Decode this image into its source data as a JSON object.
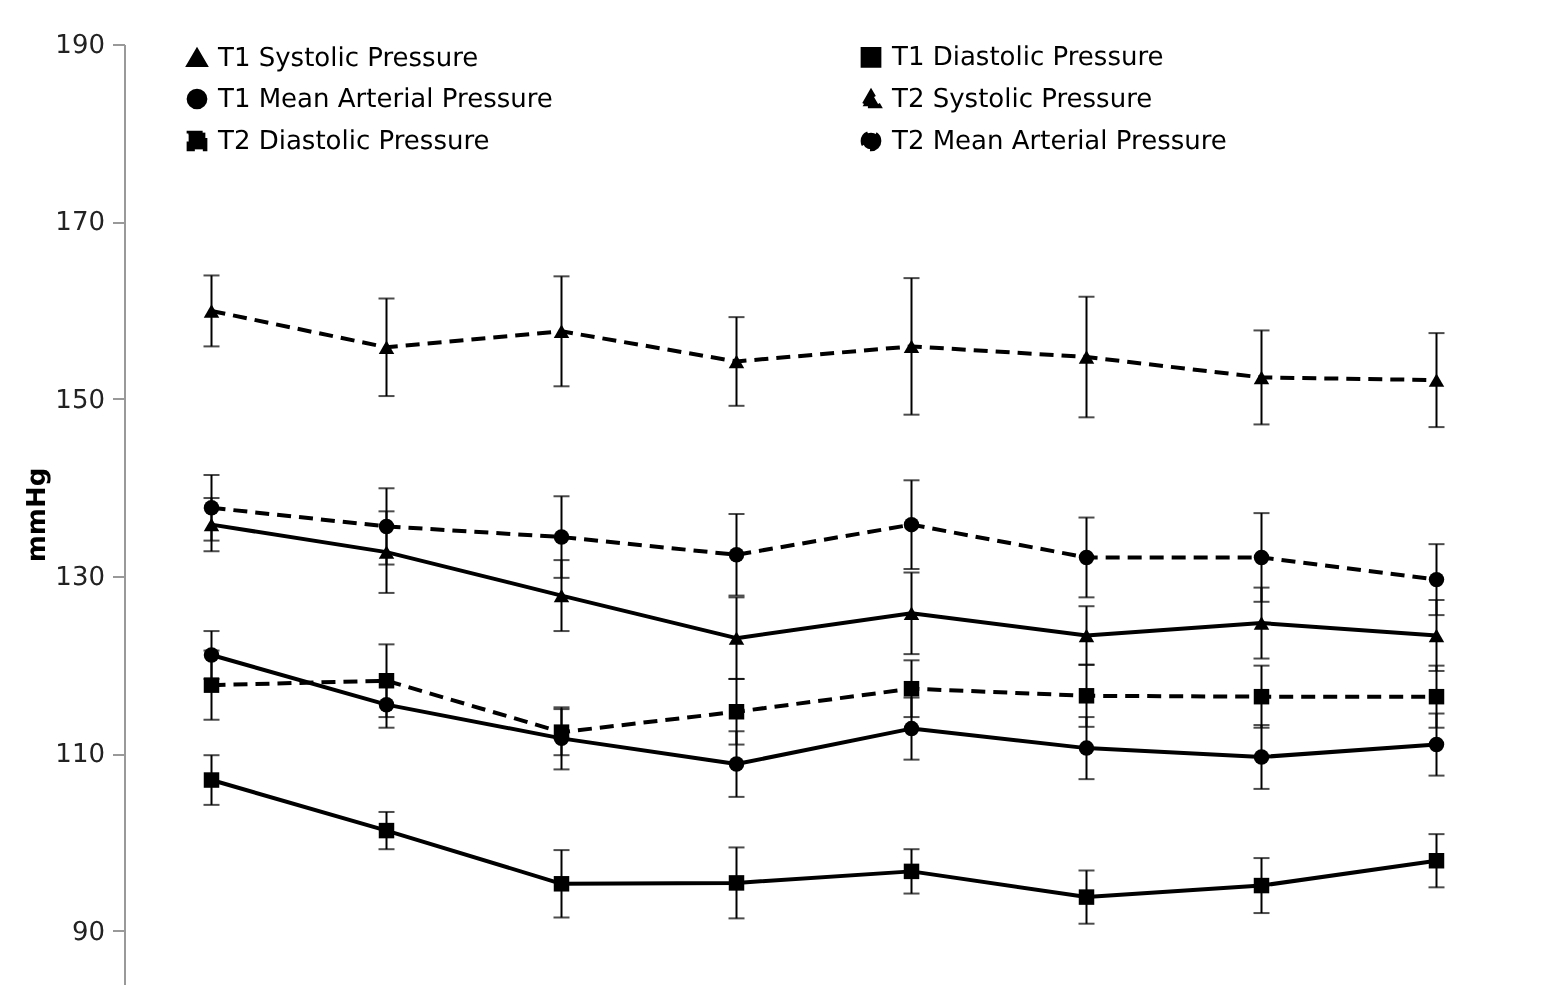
{
  "chart_data": {
    "type": "line",
    "ylabel": "mmHg",
    "categories": [
      null,
      null,
      null,
      null,
      null,
      null,
      null,
      null
    ],
    "ylim": [
      84,
      190
    ],
    "yticks": [
      90,
      110,
      130,
      150,
      170,
      190
    ],
    "grid": false,
    "legend": "top",
    "tick_labels": "y",
    "series": [
      {
        "name": "T1 Systolic Pressure",
        "color": "#000000",
        "marker": "triangle",
        "line_style": "solid",
        "values": [
          135.8,
          132.7,
          127.8,
          123.0,
          125.8,
          123.3,
          124.7,
          123.3
        ],
        "errors": [
          3,
          4.6,
          4,
          4.6,
          4.6,
          3.3,
          4,
          4
        ]
      },
      {
        "name": "T1 Diastolic Pressure",
        "color": "#000000",
        "marker": "square",
        "line_style": "solid",
        "values": [
          107.0,
          101.3,
          95.3,
          95.4,
          96.7,
          93.8,
          95.1,
          97.9
        ],
        "errors": [
          2.8,
          2.1,
          3.8,
          4,
          2.5,
          3,
          3.1,
          3
        ]
      },
      {
        "name": "T1 Mean Arterial Pressure",
        "color": "#000000",
        "marker": "circle",
        "line_style": "solid",
        "values": [
          121.1,
          115.5,
          111.7,
          108.8,
          112.8,
          110.6,
          109.6,
          111.0
        ],
        "errors": [
          2.7,
          2.6,
          3.5,
          3.7,
          3.5,
          3.5,
          3.6,
          3.5
        ]
      },
      {
        "name": "T2 Systolic Pressure",
        "color": "#000000",
        "marker": "triangle",
        "line_style": "dashed",
        "values": [
          159.9,
          155.8,
          157.6,
          154.2,
          155.9,
          154.7,
          152.4,
          152.1
        ],
        "errors": [
          4,
          5.5,
          6.2,
          5,
          7.7,
          6.8,
          5.3,
          5.3
        ]
      },
      {
        "name": "T2 Diastolic Pressure",
        "color": "#000000",
        "marker": "square",
        "line_style": "dashed",
        "values": [
          117.7,
          118.2,
          112.4,
          114.7,
          117.3,
          116.5,
          116.4,
          116.4
        ],
        "errors": [
          3.9,
          4.1,
          2.6,
          3.7,
          3.2,
          3.5,
          3.5,
          3.5
        ]
      },
      {
        "name": "T2 Mean Arterial Pressure",
        "color": "#000000",
        "marker": "circle",
        "line_style": "dashed",
        "values": [
          137.7,
          135.6,
          134.4,
          132.4,
          135.8,
          132.1,
          132.1,
          129.6
        ],
        "errors": [
          3.7,
          4.3,
          4.6,
          4.6,
          5,
          4.5,
          5,
          4
        ]
      }
    ]
  }
}
